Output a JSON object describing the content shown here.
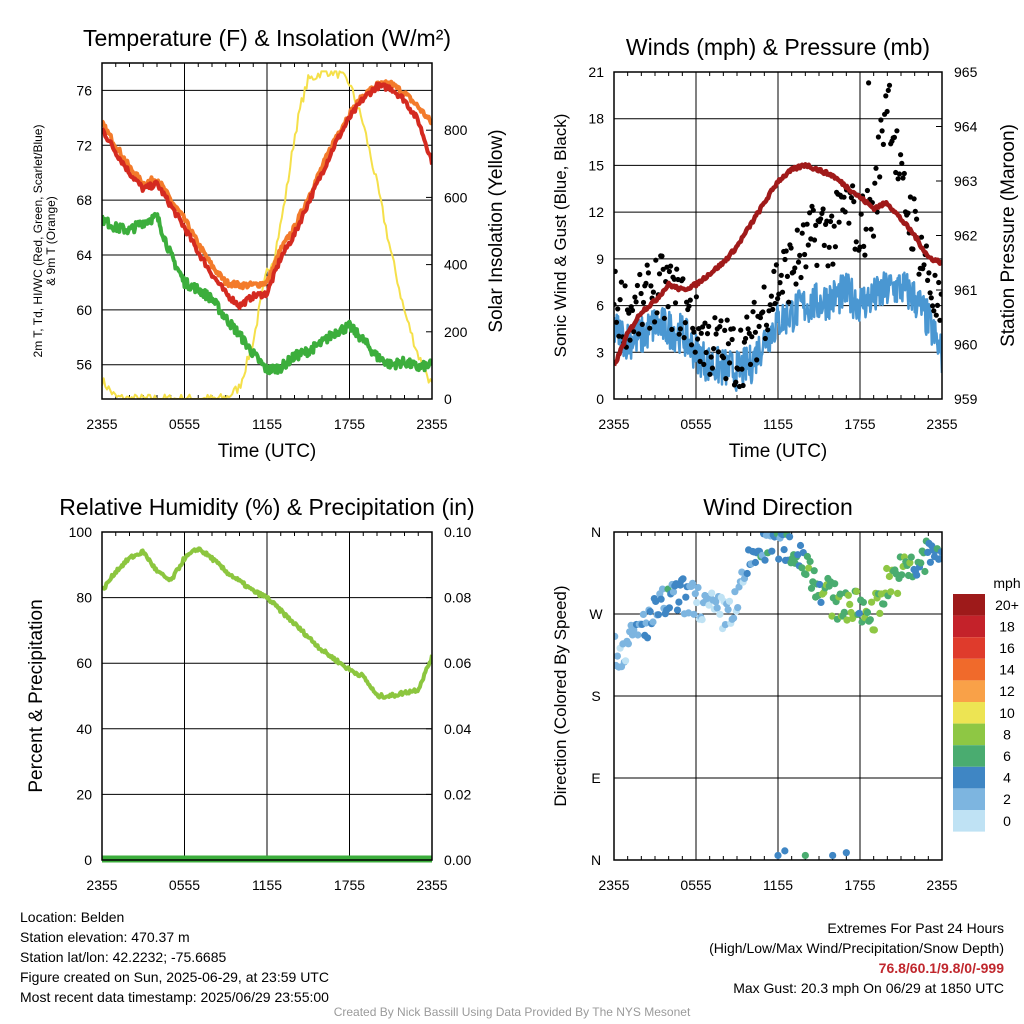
{
  "time_ticks": [
    "2355",
    "0555",
    "1155",
    "1755",
    "2355"
  ],
  "charts": [
    {
      "type": "line",
      "title": "Temperature (F) & Insolation (W/m²)",
      "xlabel": "Time (UTC)",
      "ylabel_left": "2m T, T_d, HI/WC (Red, Green, Scarlet/Blue) & 9m T (Orange)",
      "ylabel_right": "Solar Insolation (Yellow)",
      "ylim_left": [
        53.5,
        78
      ],
      "yticks_left": [
        56,
        60,
        64,
        68,
        72,
        76
      ],
      "ylim_right": [
        0,
        1000
      ],
      "yticks_right": [
        0,
        200,
        400,
        600,
        800
      ],
      "colors": {
        "temp_2m": "#d42a20",
        "dewpoint": "#3cae3c",
        "temp_9m": "#f37b2b",
        "solar": "#f5e04a"
      },
      "temp_2m": {
        "x": [
          0,
          1,
          2,
          3,
          4,
          5,
          6,
          7,
          8,
          9,
          10,
          11,
          12,
          13,
          14,
          15,
          16,
          17,
          18,
          19,
          20,
          21,
          22,
          23,
          24
        ],
        "y": [
          73.2,
          71.5,
          70.0,
          68.8,
          69.2,
          67.6,
          66.0,
          64.2,
          62.6,
          61.2,
          60.3,
          61.0,
          61.2,
          63.8,
          65.5,
          67.8,
          70.0,
          72.2,
          74.0,
          75.4,
          76.3,
          76.2,
          75.3,
          73.8,
          70.8
        ]
      },
      "temp_9m": {
        "x": [
          0,
          1,
          2,
          3,
          4,
          5,
          6,
          7,
          8,
          9,
          10,
          11,
          12,
          13,
          14,
          15,
          16,
          17,
          18,
          19,
          20,
          21,
          22,
          23,
          24
        ],
        "y": [
          73.6,
          72.0,
          70.4,
          69.2,
          69.6,
          68.0,
          66.6,
          64.8,
          63.2,
          62.0,
          61.8,
          61.8,
          62.0,
          64.4,
          66.0,
          68.2,
          70.4,
          72.6,
          74.3,
          75.6,
          76.4,
          76.5,
          75.8,
          74.8,
          73.6
        ]
      },
      "dewpoint": {
        "x": [
          0,
          1,
          2,
          3,
          4,
          5,
          6,
          7,
          8,
          9,
          10,
          11,
          12,
          13,
          14,
          15,
          16,
          17,
          18,
          19,
          20,
          21,
          22,
          23,
          24
        ],
        "y": [
          66.6,
          66.0,
          65.8,
          66.4,
          66.8,
          64.0,
          62.0,
          61.5,
          60.8,
          59.4,
          58.2,
          56.8,
          55.6,
          55.8,
          56.6,
          57.0,
          57.6,
          58.4,
          58.8,
          57.8,
          56.6,
          56.0,
          56.2,
          55.8,
          56.0
        ]
      },
      "solar": {
        "x": [
          0,
          1,
          2,
          3,
          4,
          5,
          6,
          7,
          8,
          9,
          10,
          11,
          11.5,
          12,
          12.5,
          13,
          13.5,
          14,
          14.5,
          15,
          15.5,
          16,
          17,
          18,
          19,
          20,
          21,
          22,
          23,
          24
        ],
        "y": [
          55,
          5,
          0,
          0,
          0,
          0,
          0,
          0,
          0,
          2,
          35,
          170,
          280,
          380,
          420,
          520,
          640,
          780,
          880,
          950,
          960,
          975,
          975,
          940,
          820,
          640,
          440,
          260,
          130,
          40
        ]
      }
    },
    {
      "type": "scatter",
      "title": "Winds (mph) & Pressure (mb)",
      "xlabel": "Time (UTC)",
      "ylabel_left": "Sonic Wind & Gust (Blue, Black)",
      "ylabel_right": "Station Pressure (Maroon)",
      "ylim_left": [
        0,
        21
      ],
      "yticks_left": [
        0,
        3,
        6,
        9,
        12,
        15,
        18,
        21
      ],
      "ylim_right": [
        959,
        965
      ],
      "yticks_right": [
        959,
        960,
        961,
        962,
        963,
        964,
        965
      ],
      "colors": {
        "wind": "#4a97d2",
        "gust": "#000000",
        "pressure": "#a01a1a"
      },
      "wind": {
        "x": [
          0,
          1,
          2,
          3,
          4,
          5,
          6,
          7,
          8,
          9,
          10,
          11,
          12,
          13,
          14,
          15,
          16,
          17,
          18,
          19,
          20,
          21,
          22,
          23,
          24
        ],
        "y": [
          4.5,
          3.8,
          4.0,
          4.8,
          4.5,
          4.2,
          3.0,
          2.2,
          2.0,
          1.8,
          2.2,
          3.8,
          5.0,
          5.5,
          6.0,
          6.2,
          6.5,
          6.8,
          6.2,
          6.5,
          7.0,
          7.2,
          6.5,
          5.0,
          2.8
        ]
      },
      "gust": {
        "x": [
          0,
          1,
          2,
          3,
          4,
          5,
          6,
          7,
          8,
          9,
          10,
          11,
          12,
          13,
          14,
          15,
          16,
          17,
          18,
          19,
          20,
          21,
          22,
          23,
          24
        ],
        "y": [
          6.2,
          5.5,
          5.8,
          7.2,
          6.8,
          6.0,
          4.5,
          3.5,
          3.2,
          2.8,
          3.5,
          6.0,
          7.5,
          8.5,
          9.5,
          11.0,
          10.5,
          12.5,
          11.0,
          12.0,
          20.3,
          13.5,
          11.0,
          8.0,
          4.5
        ]
      },
      "pressure": {
        "x": [
          0,
          1,
          2,
          3,
          4,
          5,
          6,
          7,
          8,
          9,
          10,
          11,
          12,
          13,
          14,
          15,
          16,
          17,
          18,
          19,
          20,
          21,
          22,
          23,
          24
        ],
        "y": [
          959.6,
          960.2,
          960.6,
          960.8,
          961.1,
          961.0,
          961.1,
          961.3,
          961.5,
          961.8,
          962.2,
          962.6,
          963.0,
          963.2,
          963.3,
          963.2,
          963.1,
          962.9,
          962.7,
          962.5,
          962.6,
          962.3,
          962.0,
          961.6,
          961.5
        ]
      }
    },
    {
      "type": "line",
      "title": "Relative Humidity (%) & Precipitation (in)",
      "xlabel": "",
      "ylabel_left": "Percent & Precipitation",
      "ylabel_right": "",
      "ylim_left": [
        0,
        100
      ],
      "yticks_left": [
        0,
        20,
        40,
        60,
        80,
        100
      ],
      "ylim_right": [
        0,
        0.1
      ],
      "yticks_right": [
        "0.00",
        "0.02",
        "0.04",
        "0.06",
        "0.08",
        "0.10"
      ],
      "colors": {
        "rh": "#8cc63f",
        "precip": "#3cae3c"
      },
      "rh": {
        "x": [
          0,
          1,
          2,
          3,
          4,
          5,
          6,
          7,
          8,
          9,
          10,
          11,
          12,
          13,
          14,
          15,
          16,
          17,
          18,
          19,
          20,
          21,
          22,
          23,
          24
        ],
        "y": [
          82,
          88,
          92,
          94,
          88,
          85,
          92,
          95,
          92,
          88,
          85,
          82,
          80,
          76,
          72,
          68,
          64,
          61,
          58,
          56,
          50,
          50,
          51,
          52,
          62
        ]
      },
      "precip": {
        "x": [
          0,
          24
        ],
        "y": [
          0,
          0
        ]
      }
    },
    {
      "type": "scatter",
      "title": "Wind Direction",
      "xlabel": "",
      "ylabel_left": "Direction (Colored By Speed)",
      "yticks_left": [
        "N",
        "E",
        "S",
        "W",
        "N"
      ],
      "ylim_left": [
        0,
        360
      ],
      "direction": {
        "x": [
          0,
          1,
          2,
          3,
          4,
          5,
          6,
          7,
          8,
          9,
          10,
          11,
          12,
          13,
          14,
          15,
          16,
          17,
          18,
          19,
          20,
          21,
          22,
          23,
          24
        ],
        "y": [
          225,
          235,
          255,
          270,
          285,
          290,
          285,
          275,
          270,
          280,
          330,
          345,
          350,
          340,
          330,
          300,
          285,
          280,
          275,
          270,
          305,
          315,
          320,
          335,
          340
        ]
      },
      "speed_at_point": [
        2,
        2,
        3,
        3,
        4,
        3,
        2,
        2,
        1,
        2,
        3,
        4,
        4,
        5,
        6,
        6,
        7,
        7,
        6,
        7,
        8,
        6,
        6,
        5,
        3
      ],
      "calm_x": [
        12,
        12.5,
        14,
        16,
        17
      ],
      "calm_y": [
        5,
        10,
        5,
        5,
        8
      ],
      "colorbar_unit": "mph",
      "colorbar_labels": [
        "20+",
        "18",
        "16",
        "14",
        "12",
        "10",
        "8",
        "6",
        "4",
        "2",
        "0"
      ],
      "colorbar_colors": [
        "#9e1a1a",
        "#c4222a",
        "#df3b2c",
        "#f06a2b",
        "#f9a148",
        "#ede453",
        "#8ec744",
        "#4aac70",
        "#3f86c4",
        "#7db5e0",
        "#bfe2f4"
      ]
    }
  ],
  "info_left": [
    "Location: Belden",
    "Station elevation: 470.37 m",
    "Station lat/lon: 42.2232; -75.6685",
    "Figure created on Sun, 2025-06-29, at 23:59 UTC",
    "Most recent data timestamp: 2025/06/29 23:55:00"
  ],
  "extremes": {
    "title": "Extremes For Past 24 Hours",
    "subtitle": "(High/Low/Max Wind/Precipitation/Snow Depth)",
    "values": "76.8/60.1/9.8/0/-999",
    "max_gust": "Max Gust: 20.3 mph On 06/29 at 1850 UTC"
  },
  "credit": "Created By Nick Bassill Using Data Provided By The NYS Mesonet"
}
